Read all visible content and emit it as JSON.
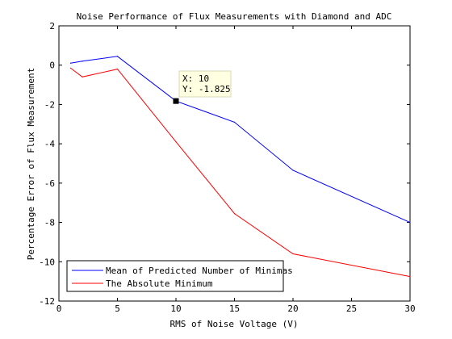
{
  "chart_data": {
    "type": "line",
    "title": "Noise Performance of Flux Measurements with Diamond and ADC",
    "xlabel": "RMS of Noise Voltage (V)",
    "ylabel": "Percentage Error of Flux Measurement",
    "xlim": [
      0,
      30
    ],
    "ylim": [
      -12,
      2
    ],
    "xticks": [
      0,
      5,
      10,
      15,
      20,
      25,
      30
    ],
    "yticks": [
      2,
      0,
      -2,
      -4,
      -6,
      -8,
      -10,
      -12
    ],
    "grid": false,
    "legend_position": "bottom-left",
    "series": [
      {
        "name": "Mean of Predicted Number of Minimas",
        "color": "#0000ff",
        "x": [
          1,
          2,
          5,
          10,
          15,
          20,
          30
        ],
        "y": [
          0.1,
          0.2,
          0.45,
          -1.825,
          -2.9,
          -5.35,
          -8.0
        ]
      },
      {
        "name": "The Absolute Minimum",
        "color": "#ff0000",
        "x": [
          1,
          2,
          5,
          10,
          15,
          20,
          30
        ],
        "y": [
          -0.15,
          -0.6,
          -0.2,
          -3.9,
          -7.55,
          -9.6,
          -10.75
        ]
      }
    ],
    "datatip": {
      "x_label": "X: 10",
      "y_label": "Y: -1.825",
      "x": 10,
      "y": -1.825
    }
  }
}
